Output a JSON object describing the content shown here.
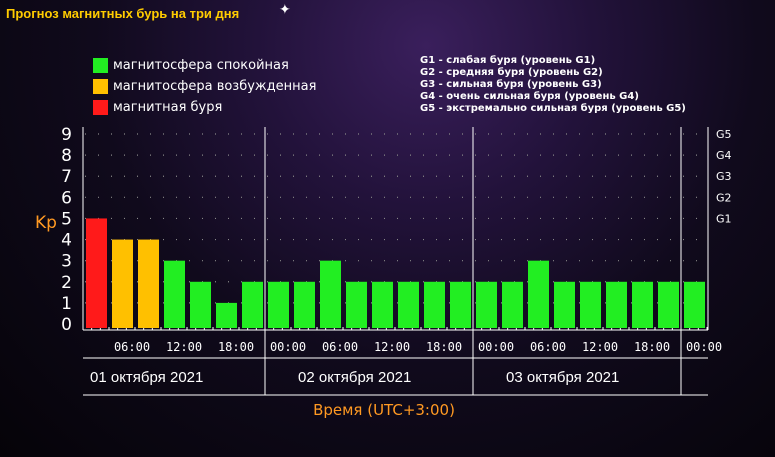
{
  "title": "Прогноз магнитных бурь на три дня",
  "legend": [
    {
      "label": "магнитосфера спокойная",
      "color": "#22ee22"
    },
    {
      "label": "магнитосфера возбужденная",
      "color": "#ffc000"
    },
    {
      "label": "магнитная буря",
      "color": "#ff1a1a"
    }
  ],
  "g_levels": [
    "G1 - слабая буря (уровень G1)",
    "G2 - средняя буря (уровень G2)",
    "G3 - сильная буря (уровень G3)",
    "G4 - очень сильная буря (уровень G4)",
    "G5 - экстремально сильная буря (уровень G5)"
  ],
  "chart_data": {
    "type": "bar",
    "ylabel": "Kp",
    "xlabel": "Время (UTC+3:00)",
    "ylim": [
      0,
      9
    ],
    "yticks": [
      "0",
      "1",
      "2",
      "3",
      "4",
      "5",
      "6",
      "7",
      "8",
      "9"
    ],
    "right_ticks": [
      {
        "label": "G1",
        "value": 5
      },
      {
        "label": "G2",
        "value": 6
      },
      {
        "label": "G3",
        "value": 7
      },
      {
        "label": "G4",
        "value": 8
      },
      {
        "label": "G5",
        "value": 9
      }
    ],
    "time_ticks": [
      "06:00",
      "12:00",
      "18:00",
      "00:00",
      "06:00",
      "12:00",
      "18:00",
      "00:00",
      "06:00",
      "12:00",
      "18:00",
      "00:00"
    ],
    "days": [
      "01 октября 2021",
      "02 октября 2021",
      "03 октября 2021"
    ],
    "values": [
      5,
      4,
      4,
      3,
      2,
      1,
      2,
      2,
      2,
      3,
      2,
      2,
      2,
      2,
      2,
      2,
      2,
      3,
      2,
      2,
      2,
      2,
      2,
      2
    ],
    "grid": true,
    "colors": {
      "quiet": "#22ee22",
      "active": "#ffc000",
      "storm": "#ff1a1a",
      "axis": "#ffffff",
      "grid": "#888888",
      "ylabel": "#ff9922",
      "xlabel": "#ff9922"
    }
  }
}
